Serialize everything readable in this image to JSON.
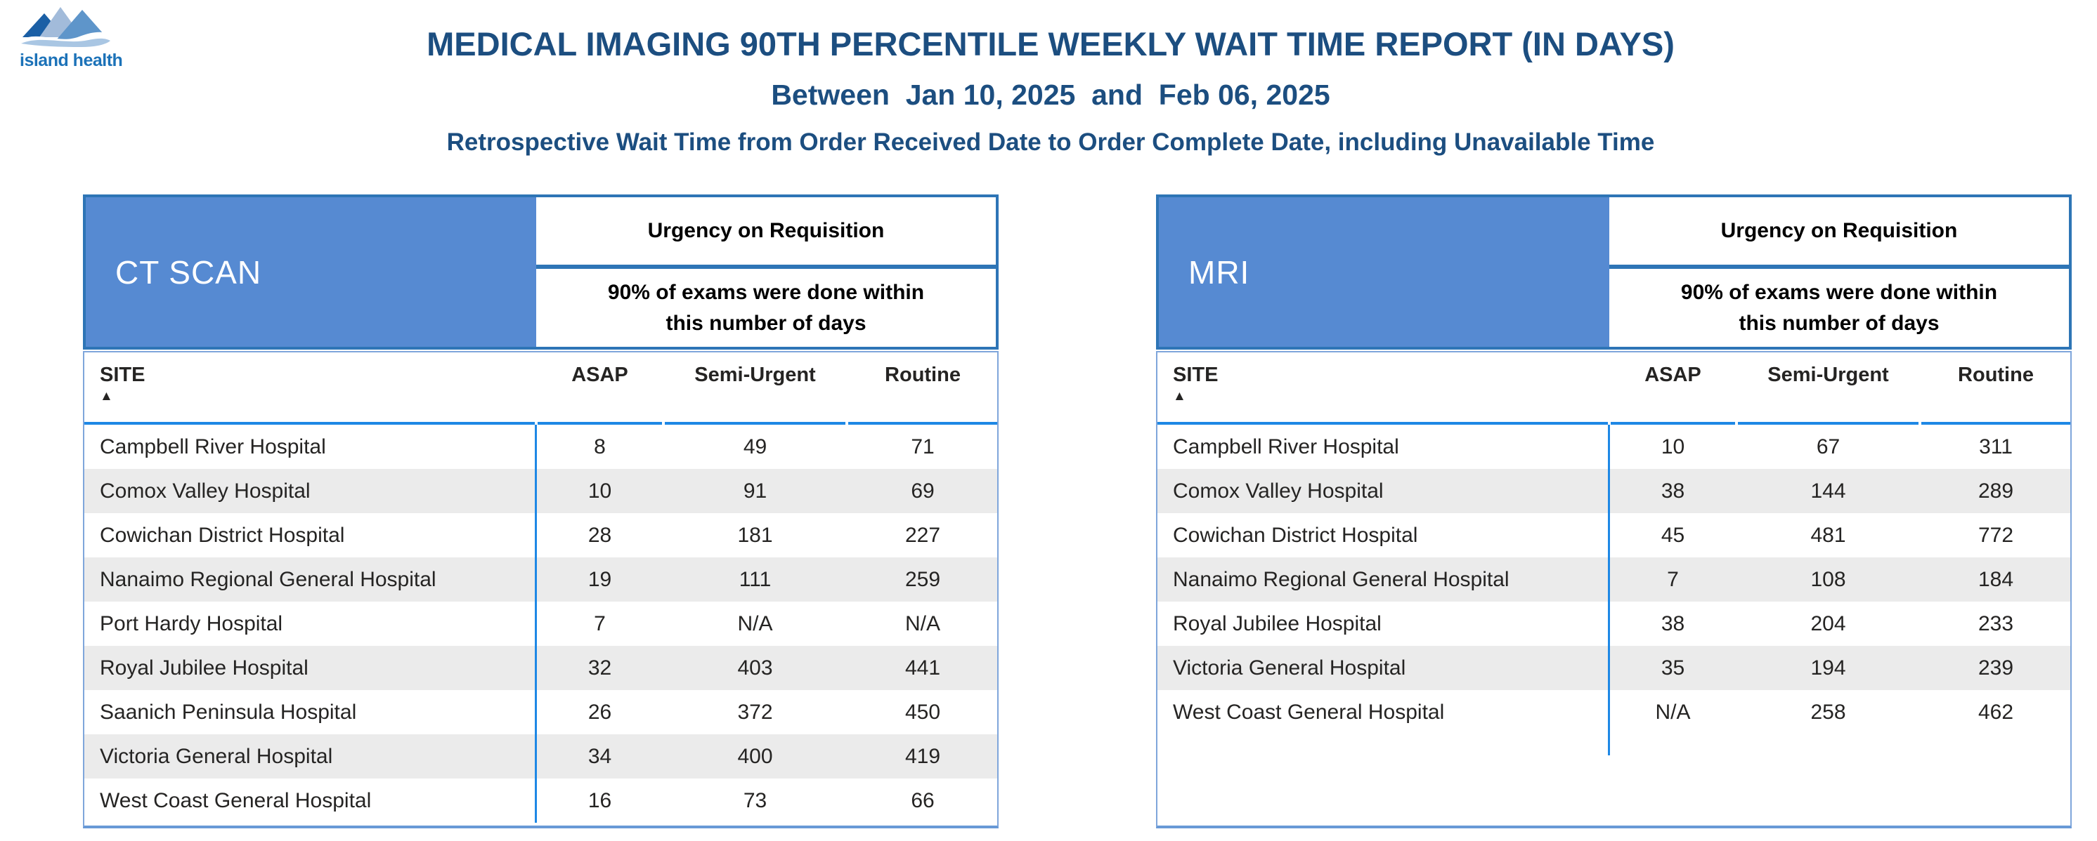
{
  "logo": {
    "brand": "island health",
    "mountain_colors": [
      "#1B5FA5",
      "#A2BBDA",
      "#5E95CA"
    ],
    "wave_color": "#A9C6E3"
  },
  "header": {
    "title": "MEDICAL IMAGING 90TH PERCENTILE WEEKLY WAIT TIME REPORT (IN DAYS)",
    "date_range": "Between  Jan 10, 2025  and  Feb 06, 2025",
    "subtitle": "Retrospective Wait Time from Order Received Date to Order Complete Date, including Unavailable Time"
  },
  "tables": [
    {
      "modality": "CT SCAN",
      "urgency_header": "Urgency on Requisition",
      "urgency_subheader": "90% of exams were done within this number of days",
      "sort_indicator": "▲",
      "sorted_column": "SITE"
    },
    {
      "modality": "MRI",
      "urgency_header": "Urgency on Requisition",
      "urgency_subheader": "90% of exams were done within this number of days",
      "sort_indicator": "▲",
      "sorted_column": "SITE"
    }
  ],
  "chart_data": [
    {
      "type": "table",
      "title": "CT SCAN",
      "columns": [
        "SITE",
        "ASAP",
        "Semi-Urgent",
        "Routine"
      ],
      "rows": [
        [
          "Campbell River Hospital",
          8,
          49,
          71
        ],
        [
          "Comox Valley Hospital",
          10,
          91,
          69
        ],
        [
          "Cowichan District Hospital",
          28,
          181,
          227
        ],
        [
          "Nanaimo Regional General Hospital",
          19,
          111,
          259
        ],
        [
          "Port Hardy Hospital",
          7,
          "N/A",
          "N/A"
        ],
        [
          "Royal Jubilee Hospital",
          32,
          403,
          441
        ],
        [
          "Saanich Peninsula Hospital",
          26,
          372,
          450
        ],
        [
          "Victoria General Hospital",
          34,
          400,
          419
        ],
        [
          "West Coast General Hospital",
          16,
          73,
          66
        ]
      ]
    },
    {
      "type": "table",
      "title": "MRI",
      "columns": [
        "SITE",
        "ASAP",
        "Semi-Urgent",
        "Routine"
      ],
      "rows": [
        [
          "Campbell River Hospital",
          10,
          67,
          311
        ],
        [
          "Comox Valley Hospital",
          38,
          144,
          289
        ],
        [
          "Cowichan District Hospital",
          45,
          481,
          772
        ],
        [
          "Nanaimo Regional General Hospital",
          7,
          108,
          184
        ],
        [
          "Royal Jubilee Hospital",
          38,
          204,
          233
        ],
        [
          "Victoria General Hospital",
          35,
          194,
          239
        ],
        [
          "West Coast General Hospital",
          "N/A",
          258,
          462
        ]
      ]
    }
  ],
  "colors": {
    "accent_fill": "#568AD2",
    "border_dark": "#2E75B6",
    "border_light": "#7FA6DB",
    "line_bright": "#1E88E5",
    "row_alt": "#EBEBEB",
    "title_text": "#1C4E80",
    "logo_text": "#1C72B8"
  }
}
